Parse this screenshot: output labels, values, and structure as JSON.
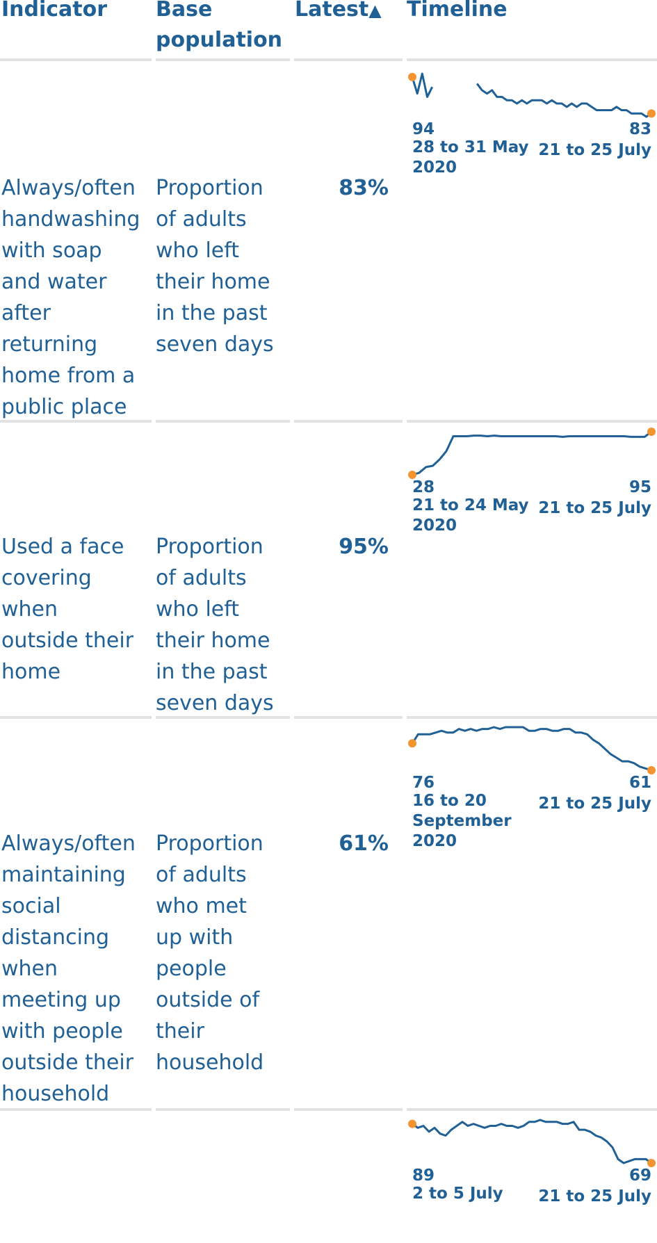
{
  "header": {
    "indicator": "Indicator",
    "base_population_line1": "Base",
    "base_population_line2": "population",
    "latest": "Latest",
    "sort_icon": "triangle-up-icon",
    "timeline": "Timeline"
  },
  "colors": {
    "text": "#206095",
    "line": "#206095",
    "endpoint": "#f39431",
    "rule": "#e2e2e3"
  },
  "rows": [
    {
      "indicator_lines": [
        "Always/often",
        "handwashing",
        "with soap",
        "and water",
        "after",
        "returning",
        "home from a",
        "public place"
      ],
      "base_lines": [
        "Proportion",
        "of adults",
        "who left",
        "their home",
        "in the past",
        "seven days"
      ],
      "latest": "83%",
      "timeline": {
        "start_value": "94",
        "start_date_lines": [
          "28 to 31 May",
          "2020"
        ],
        "end_value": "83",
        "end_date": "21 to 25 July"
      }
    },
    {
      "indicator_lines": [
        "Used a face",
        "covering",
        "when",
        "outside their",
        "home"
      ],
      "base_lines": [
        "Proportion",
        "of adults",
        "who left",
        "their home",
        "in the past",
        "seven days"
      ],
      "latest": "95%",
      "timeline": {
        "start_value": "28",
        "start_date_lines": [
          "21 to 24 May",
          "2020"
        ],
        "end_value": "95",
        "end_date": "21 to 25 July"
      }
    },
    {
      "indicator_lines": [
        "Always/often",
        "maintaining",
        "social",
        "distancing",
        "when",
        "meeting up",
        "with people",
        "outside their",
        "household"
      ],
      "base_lines": [
        "Proportion",
        "of adults",
        "who met",
        "up with",
        "people",
        "outside of",
        "their",
        "household"
      ],
      "latest": "61%",
      "timeline": {
        "start_value": "76",
        "start_date_lines": [
          "16 to 20",
          "September",
          "2020"
        ],
        "end_value": "61",
        "end_date": "21 to 25 July"
      }
    },
    {
      "indicator_lines": [],
      "base_lines": [],
      "latest": "",
      "timeline": {
        "start_value": "89",
        "start_date_lines": [
          "2 to 5 July"
        ],
        "end_value": "69",
        "end_date": "21 to 25 July"
      }
    }
  ],
  "chart_data": [
    {
      "type": "line",
      "series": [
        {
          "values": [
            94,
            89,
            95,
            88,
            91,
            null,
            null,
            null,
            null,
            null,
            null,
            null,
            null,
            92,
            90,
            89,
            90,
            88,
            88,
            87,
            87,
            86,
            87,
            86,
            87,
            87,
            87,
            86,
            87,
            86,
            86,
            85,
            86,
            85,
            86,
            86,
            85,
            84,
            84,
            84,
            84,
            85,
            84,
            84,
            83,
            83,
            83,
            82,
            83
          ]
        }
      ]
    },
    {
      "type": "line",
      "series": [
        {
          "values": [
            28,
            31,
            40,
            42,
            52,
            65,
            88,
            88,
            88,
            89,
            89,
            88,
            89,
            88,
            88,
            88,
            88,
            88,
            88,
            88,
            88,
            88,
            87,
            88,
            88,
            88,
            88,
            88,
            88,
            88,
            88,
            88,
            87,
            87,
            87,
            95
          ]
        }
      ]
    },
    {
      "type": "line",
      "series": [
        {
          "values": [
            76,
            81,
            81,
            81,
            82,
            83,
            82,
            82,
            84,
            83,
            84,
            83,
            84,
            84,
            85,
            84,
            85,
            85,
            85,
            85,
            83,
            83,
            84,
            84,
            83,
            83,
            84,
            84,
            82,
            82,
            81,
            78,
            76,
            73,
            70,
            68,
            66,
            66,
            65,
            63,
            62,
            61
          ]
        }
      ]
    },
    {
      "type": "line",
      "series": [
        {
          "values": [
            89,
            87,
            88,
            85,
            87,
            84,
            83,
            86,
            88,
            90,
            88,
            89,
            88,
            87,
            88,
            88,
            89,
            88,
            88,
            87,
            88,
            90,
            90,
            91,
            90,
            90,
            90,
            89,
            89,
            90,
            86,
            86,
            85,
            83,
            82,
            80,
            77,
            71,
            69,
            70,
            71,
            71,
            71,
            69
          ]
        }
      ]
    }
  ]
}
